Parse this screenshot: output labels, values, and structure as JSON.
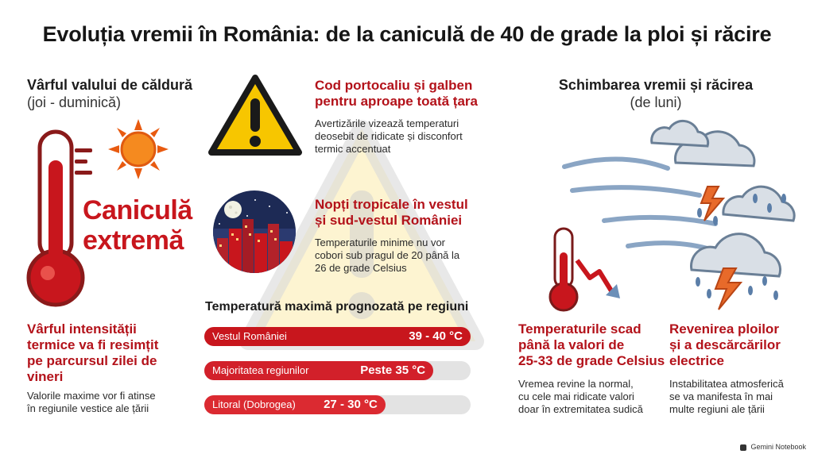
{
  "title": "Evoluția vremii în România: de la caniculă de 40 de grade la ploi și răcire",
  "left": {
    "heading": "Vârful valului de căldură",
    "subheading": "(joi - duminică)",
    "big_label_line1": "Caniculă",
    "big_label_line2": "extremă",
    "peak_title_lines": [
      "Vârful intensității",
      "termice va fi resimțit",
      "pe parcursul zilei de",
      "vineri"
    ],
    "peak_text_lines": [
      "Valorile maxime vor fi atinse",
      "în regiunile vestice ale țării"
    ]
  },
  "center": {
    "warning_title_lines": [
      "Cod portocaliu și galben",
      "pentru aproape toată țara"
    ],
    "warning_text_lines": [
      "Avertizările vizează temperaturi",
      "deosebit de ridicate și disconfort",
      "termic accentuat"
    ],
    "nights_title_lines": [
      "Nopți tropicale în vestul",
      "și sud-vestul României"
    ],
    "nights_text_lines": [
      "Temperaturile minime nu vor",
      "cobori sub pragul de 20 până la",
      "26 de grade Celsius"
    ]
  },
  "chart_data": {
    "type": "bar",
    "title": "Temperatură maximă prognozată pe regiuni",
    "categories": [
      "Vestul României",
      "Majoritatea regiunilor",
      "Litoral (Dobrogea)"
    ],
    "value_labels": [
      "39 - 40 °C",
      "Peste 35 °C",
      "27 - 30 °C"
    ],
    "fill_fraction": [
      1.0,
      0.86,
      0.68
    ],
    "colors": [
      "#c8161d",
      "#d2202a",
      "#db2a31"
    ]
  },
  "right": {
    "heading": "Schimbarea vremii și răcirea",
    "subheading": "(de luni)",
    "drop_title_lines": [
      "Temperaturile scad",
      "până la valori de",
      "25-33 de grade Celsius"
    ],
    "drop_text_lines": [
      "Vremea revine la normal,",
      "cu cele mai ridicate valori",
      "doar în extremitatea sudică"
    ],
    "rain_title_lines": [
      "Revenirea ploilor",
      "și a descărcărilor",
      "electrice"
    ],
    "rain_text_lines": [
      "Instabilitatea atmosferică",
      "se va manifesta în mai",
      "multe regiuni ale țării"
    ]
  },
  "footer": "Gemini Notebook",
  "colors": {
    "accent_red": "#c8161d",
    "warning_yellow": "#f7c600",
    "sky_night": "#1d2a55"
  }
}
